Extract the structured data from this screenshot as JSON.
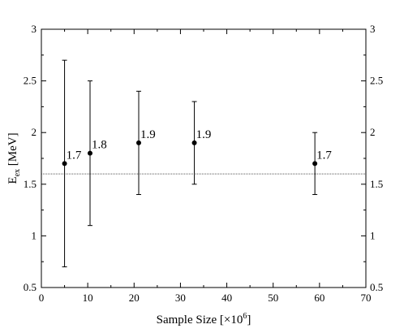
{
  "chart_data": {
    "type": "scatter",
    "title": "",
    "xlabel": "Sample Size [×10",
    "xlabel_sup": "6",
    "xlabel_end": "]",
    "ylabel": "E",
    "ylabel_sub": "ex",
    "ylabel_end": " [MeV]",
    "xlim": [
      0,
      70
    ],
    "ylim": [
      0.5,
      3
    ],
    "x_ticks": [
      0,
      10,
      20,
      30,
      40,
      50,
      60,
      70
    ],
    "x_tick_labels": [
      "0",
      "10",
      "20",
      "30",
      "40",
      "50",
      "60",
      "70"
    ],
    "y_ticks": [
      0.5,
      1,
      1.5,
      2,
      2.5,
      3
    ],
    "y_tick_labels": [
      "0.5",
      "1",
      "1.5",
      "2",
      "2.5",
      "3"
    ],
    "right_axis_ticks_labeled": true,
    "grid": false,
    "points": [
      {
        "x": 5,
        "y": 1.7,
        "y_low": 0.7,
        "y_high": 2.7,
        "label": "1.7"
      },
      {
        "x": 10.5,
        "y": 1.8,
        "y_low": 1.1,
        "y_high": 2.5,
        "label": "1.8"
      },
      {
        "x": 21,
        "y": 1.9,
        "y_low": 1.4,
        "y_high": 2.4,
        "label": "1.9"
      },
      {
        "x": 33,
        "y": 1.9,
        "y_low": 1.5,
        "y_high": 2.3,
        "label": "1.9"
      },
      {
        "x": 59,
        "y": 1.7,
        "y_low": 1.4,
        "y_high": 2.0,
        "label": "1.7"
      }
    ],
    "reference_line": {
      "y": 1.6,
      "style": "dotted"
    },
    "colors": {
      "points": "#000000",
      "axes": "#000000",
      "reference_line": "#555555"
    }
  }
}
